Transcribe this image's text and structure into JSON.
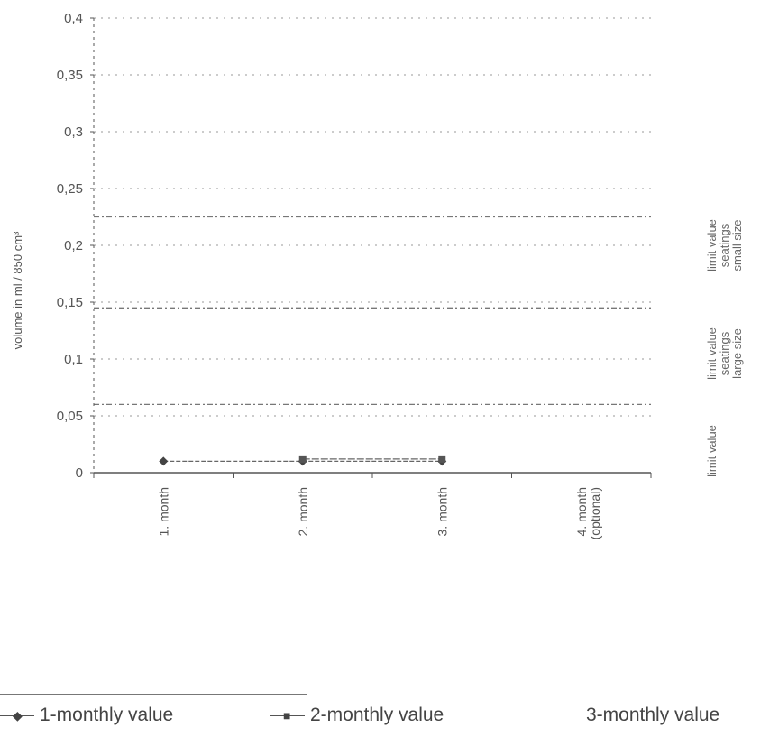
{
  "chart_data": {
    "type": "line",
    "title": "",
    "ylabel": "volume in ml / 850 cm³",
    "xlabel": "",
    "ylim": [
      0,
      0.4
    ],
    "yticks": [
      "0",
      "0,05",
      "0,1",
      "0,15",
      "0,2",
      "0,25",
      "0,3",
      "0,35",
      "0,4"
    ],
    "categories": [
      "1. month",
      "2. month",
      "3. month",
      "4. month (optional)"
    ],
    "series": [
      {
        "name": "1-monthly value",
        "marker": "◆",
        "values": [
          0.01,
          0.01,
          0.01,
          null
        ]
      },
      {
        "name": "2-monthly value",
        "marker": "■",
        "values": [
          null,
          0.012,
          0.012,
          null
        ]
      },
      {
        "name": "3-monthly value",
        "marker": "",
        "values": [
          null,
          null,
          0.012,
          null
        ]
      }
    ],
    "reference_lines": [
      {
        "value": 0.06,
        "label": "limit value",
        "style": "dashed"
      },
      {
        "value": 0.145,
        "label": "limit value seatings large size",
        "style": "dashed"
      },
      {
        "value": 0.225,
        "label": "limit value seatings small size",
        "style": "dashed"
      }
    ],
    "right_labels": [
      {
        "lines": [
          "limit value",
          "seatings",
          "small size"
        ]
      },
      {
        "lines": [
          "limit value",
          "seatings",
          "large size"
        ]
      },
      {
        "lines": [
          "limit value"
        ]
      }
    ],
    "grid": true,
    "legend_position": "bottom",
    "colors": {
      "axis": "#555555",
      "line": "#666666"
    }
  }
}
